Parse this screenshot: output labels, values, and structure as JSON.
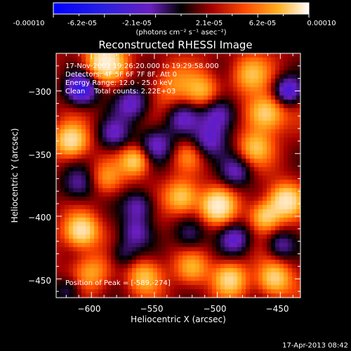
{
  "colorbar": {
    "tick_labels": [
      "-0.00010",
      "-6.2e-05",
      "-2.1e-05",
      "2.1e-05",
      "6.2e-05",
      "0.00010"
    ],
    "unit_label": "(photons cm⁻² s⁻¹ asec⁻²)"
  },
  "annotations": {
    "time_range": "17-Nov-2002 19:26:20.000 to 19:29:58.000",
    "detectors": "Detectors: 4F 5F 6F 7F 8F, Att 0",
    "energy": "Energy Range: 12.0 - 25.0 keV",
    "clean": "Clean    Total counts: 2.22E+03",
    "peak": "Position of Peak = [-589,-274]"
  },
  "footer": {
    "date": "17-Apr-2013 08:42"
  },
  "chart_data": {
    "type": "heatmap",
    "title": "Reconstructed RHESSI Image",
    "xlabel": "Heliocentric X (arcsec)",
    "ylabel": "Heliocentric Y (arcsec)",
    "xlim": [
      -628,
      -434
    ],
    "ylim": [
      -465,
      -270
    ],
    "xticks": [
      -600,
      -550,
      -500,
      -450
    ],
    "yticks": [
      -300,
      -350,
      -400,
      -450
    ],
    "xtick_labels": [
      "−600",
      "−550",
      "−500",
      "−450"
    ],
    "ytick_labels": [
      "−300",
      "−350",
      "−400",
      "−450"
    ],
    "zlim": [
      -0.0001,
      0.0001
    ],
    "colormap": [
      "#1010ff",
      "#6a1fc0",
      "#000000",
      "#a40000",
      "#ff4a00",
      "#ffb020",
      "#ffffff"
    ],
    "peak": [
      -589,
      -274
    ],
    "blobs": [
      {
        "x": -589,
        "y": -276,
        "amp": 1.0,
        "s": 10
      },
      {
        "x": -608,
        "y": -299,
        "amp": -0.8,
        "s": 9
      },
      {
        "x": -535,
        "y": -296,
        "amp": 0.35,
        "s": 12
      },
      {
        "x": -512,
        "y": -300,
        "amp": 0.5,
        "s": 9
      },
      {
        "x": -474,
        "y": -287,
        "amp": 0.55,
        "s": 10
      },
      {
        "x": -462,
        "y": -318,
        "amp": 0.8,
        "s": 10
      },
      {
        "x": -444,
        "y": -300,
        "amp": -0.7,
        "s": 8
      },
      {
        "x": -567,
        "y": -310,
        "amp": -0.55,
        "s": 10
      },
      {
        "x": -498,
        "y": -319,
        "amp": -0.6,
        "s": 10
      },
      {
        "x": -528,
        "y": -322,
        "amp": -0.45,
        "s": 9
      },
      {
        "x": -616,
        "y": -340,
        "amp": 0.85,
        "s": 9
      },
      {
        "x": -582,
        "y": -335,
        "amp": -0.5,
        "s": 9
      },
      {
        "x": -548,
        "y": -343,
        "amp": -0.5,
        "s": 10
      },
      {
        "x": -507,
        "y": -340,
        "amp": -0.5,
        "s": 10
      },
      {
        "x": -470,
        "y": -345,
        "amp": 0.55,
        "s": 9
      },
      {
        "x": -565,
        "y": -356,
        "amp": 0.7,
        "s": 8
      },
      {
        "x": -523,
        "y": -352,
        "amp": 0.3,
        "s": 8
      },
      {
        "x": -485,
        "y": -365,
        "amp": -0.45,
        "s": 9
      },
      {
        "x": -610,
        "y": -375,
        "amp": -0.45,
        "s": 10
      },
      {
        "x": -588,
        "y": -370,
        "amp": 0.4,
        "s": 9
      },
      {
        "x": -528,
        "y": -385,
        "amp": 0.7,
        "s": 9
      },
      {
        "x": -500,
        "y": -392,
        "amp": 0.95,
        "s": 9
      },
      {
        "x": -446,
        "y": -388,
        "amp": 0.9,
        "s": 9
      },
      {
        "x": -462,
        "y": -400,
        "amp": 0.7,
        "s": 8
      },
      {
        "x": -562,
        "y": -392,
        "amp": -0.5,
        "s": 9
      },
      {
        "x": -608,
        "y": -412,
        "amp": 0.9,
        "s": 9
      },
      {
        "x": -565,
        "y": -413,
        "amp": -0.45,
        "s": 9
      },
      {
        "x": -522,
        "y": -415,
        "amp": -0.4,
        "s": 9
      },
      {
        "x": -486,
        "y": -418,
        "amp": -0.5,
        "s": 9
      },
      {
        "x": -450,
        "y": -423,
        "amp": -0.45,
        "s": 8
      },
      {
        "x": -600,
        "y": -445,
        "amp": 0.45,
        "s": 10
      },
      {
        "x": -558,
        "y": -448,
        "amp": 0.55,
        "s": 9
      },
      {
        "x": -520,
        "y": -442,
        "amp": 0.5,
        "s": 9
      },
      {
        "x": -490,
        "y": -450,
        "amp": 0.7,
        "s": 9
      },
      {
        "x": -455,
        "y": -450,
        "amp": 0.75,
        "s": 9
      },
      {
        "x": -575,
        "y": -430,
        "amp": -0.35,
        "s": 8
      },
      {
        "x": -618,
        "y": -460,
        "amp": -0.4,
        "s": 8
      }
    ]
  }
}
